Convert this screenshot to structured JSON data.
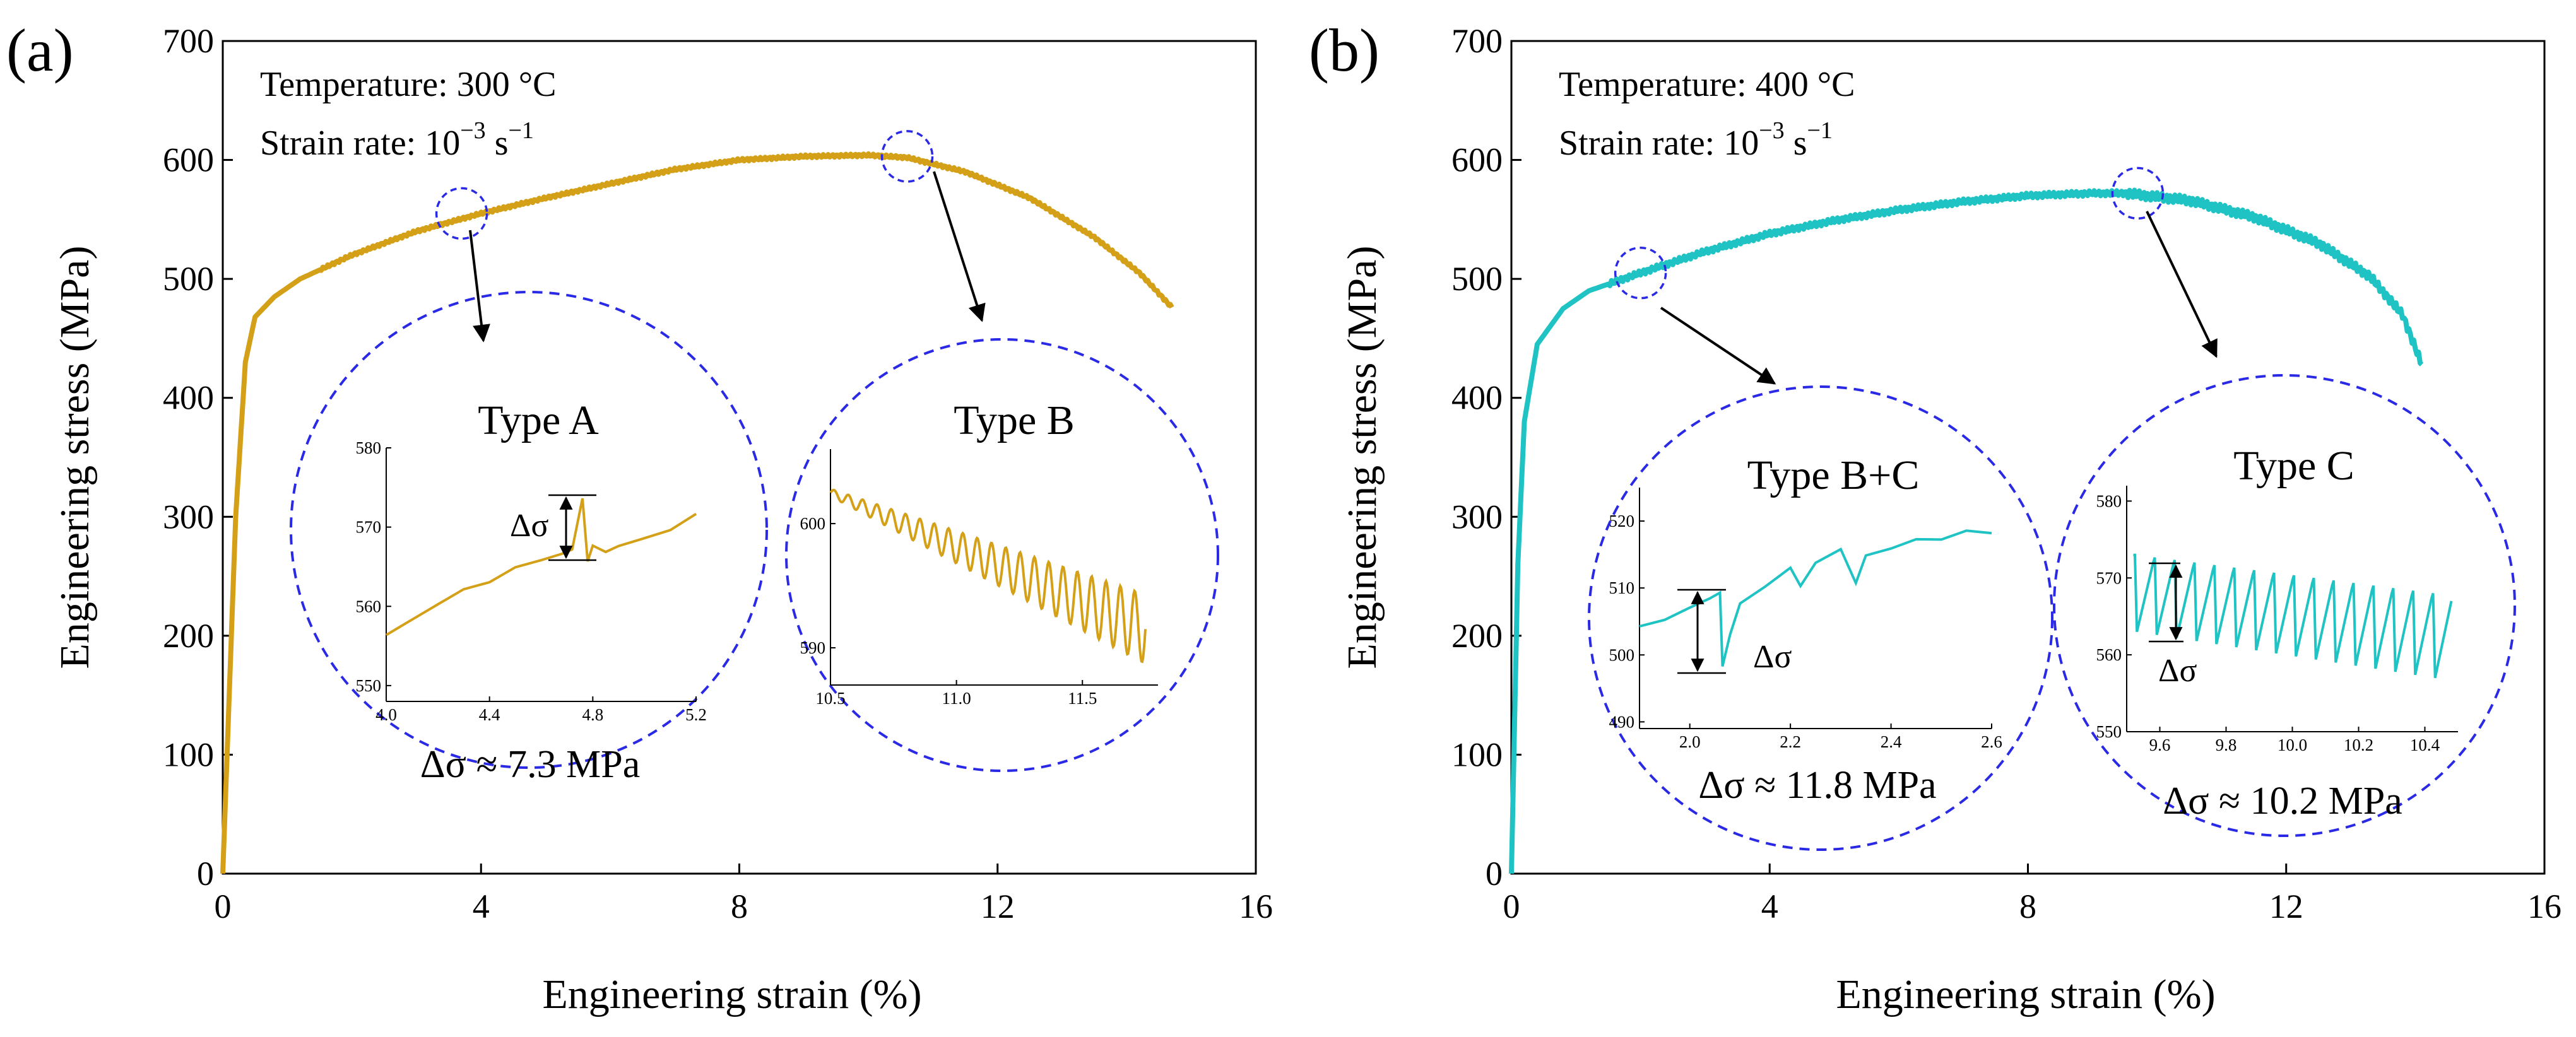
{
  "chart_data": [
    {
      "type": "line",
      "panel_label": "(a)",
      "xlabel": "Engineering strain (%)",
      "ylabel": "Engineering stress (MPa)",
      "xlim": [
        0,
        16
      ],
      "ylim": [
        0,
        700
      ],
      "x_ticks": [
        "0",
        "4",
        "8",
        "12",
        "16"
      ],
      "y_ticks": [
        "0",
        "100",
        "200",
        "300",
        "400",
        "500",
        "600",
        "700"
      ],
      "grid": false,
      "legend": "none",
      "color": "#d4a017",
      "annotations": {
        "temperature": "Temperature: 300 °C",
        "strain_rate_prefix": "Strain rate: 10",
        "strain_rate_exp": "−3",
        "strain_rate_unit": " s",
        "strain_rate_unit_exp": "−1"
      },
      "series": [
        {
          "name": "300 °C",
          "x": [
            0,
            0.2,
            0.35,
            0.5,
            0.8,
            1.2,
            1.6,
            2.0,
            3.0,
            4.0,
            5.0,
            6.0,
            7.0,
            8.0,
            9.0,
            10.0,
            10.6,
            11.5,
            12.5,
            13.5,
            14.2,
            14.7
          ],
          "y": [
            0,
            300,
            430,
            468,
            485,
            500,
            510,
            520,
            540,
            555,
            568,
            580,
            592,
            600,
            603,
            604,
            602,
            590,
            568,
            535,
            505,
            476
          ]
        }
      ],
      "zoom_markers": [
        {
          "x": 3.7,
          "y": 555
        },
        {
          "x": 10.6,
          "y": 603
        }
      ],
      "insets": [
        {
          "title": "Type A",
          "xlim": [
            4.0,
            5.2
          ],
          "ylim": [
            548,
            580
          ],
          "x_ticks": [
            "4.0",
            "4.4",
            "4.8",
            "5.2"
          ],
          "y_ticks": [
            "550",
            "560",
            "570",
            "580"
          ],
          "delta_label": "Δσ",
          "note": "Δσ ≈ 7.3 MPa",
          "series": {
            "x": [
              4.0,
              4.1,
              4.2,
              4.3,
              4.4,
              4.5,
              4.6,
              4.68,
              4.72,
              4.76,
              4.78,
              4.8,
              4.85,
              4.9,
              5.0,
              5.1,
              5.2
            ],
            "y": [
              556,
              558,
              560,
              562,
              563,
              565,
              566,
              567,
              567,
              573.5,
              566,
              568,
              566.5,
              568,
              569,
              570,
              572
            ]
          }
        },
        {
          "title": "Type B",
          "xlim": [
            10.5,
            11.8
          ],
          "ylim": [
            587,
            606
          ],
          "x_ticks": [
            "10.5",
            "11.0",
            "11.5"
          ],
          "y_ticks": [
            "590",
            "600"
          ],
          "series": {
            "x_start": 10.5,
            "x_end": 11.75,
            "y_start": 602.5,
            "y_end": 591.5,
            "osc_amp_end": 2.5
          }
        }
      ]
    },
    {
      "type": "line",
      "panel_label": "(b)",
      "xlabel": "Engineering strain (%)",
      "ylabel": "Engineering stress (MPa)",
      "xlim": [
        0,
        16
      ],
      "ylim": [
        0,
        700
      ],
      "x_ticks": [
        "0",
        "4",
        "8",
        "12",
        "16"
      ],
      "y_ticks": [
        "0",
        "100",
        "200",
        "300",
        "400",
        "500",
        "600",
        "700"
      ],
      "grid": false,
      "legend": "none",
      "color": "#1fc3c3",
      "annotations": {
        "temperature": "Temperature: 400 °C",
        "strain_rate_prefix": "Strain rate: 10",
        "strain_rate_exp": "−3",
        "strain_rate_unit": " s",
        "strain_rate_unit_exp": "−1"
      },
      "series": [
        {
          "name": "400 °C",
          "x": [
            0,
            0.1,
            0.2,
            0.4,
            0.8,
            1.2,
            2.0,
            3.0,
            4.0,
            5.0,
            6.0,
            7.0,
            8.0,
            9.0,
            9.5,
            10.5,
            11.5,
            12.5,
            13.3,
            13.8,
            14.1
          ],
          "y": [
            0,
            260,
            380,
            445,
            475,
            490,
            505,
            523,
            538,
            549,
            558,
            565,
            570,
            572,
            572,
            566,
            552,
            530,
            502,
            470,
            428
          ]
        }
      ],
      "zoom_markers": [
        {
          "x": 2.0,
          "y": 505
        },
        {
          "x": 9.7,
          "y": 572
        }
      ],
      "insets": [
        {
          "title": "Type B+C",
          "xlim": [
            1.9,
            2.6
          ],
          "ylim": [
            489,
            525
          ],
          "x_ticks": [
            "2.0",
            "2.2",
            "2.4",
            "2.6"
          ],
          "y_ticks": [
            "490",
            "500",
            "510",
            "520"
          ],
          "delta_label": "Δσ",
          "note": "Δσ ≈ 11.8 MPa",
          "series": {
            "x": [
              1.9,
              1.95,
              2.0,
              2.04,
              2.06,
              2.065,
              2.08,
              2.1,
              2.15,
              2.2,
              2.22,
              2.25,
              2.3,
              2.33,
              2.35,
              2.4,
              2.45,
              2.5,
              2.55,
              2.6
            ],
            "y": [
              504,
              505.5,
              507,
              508.5,
              509,
              498,
              503,
              508,
              510,
              513,
              510,
              514,
              515.5,
              511,
              515,
              516,
              517,
              517.5,
              518.5,
              518
            ]
          }
        },
        {
          "title": "Type C",
          "xlim": [
            9.5,
            10.5
          ],
          "ylim": [
            550,
            582
          ],
          "x_ticks": [
            "9.6",
            "9.8",
            "10.0",
            "10.2",
            "10.4"
          ],
          "y_ticks": [
            "550",
            "560",
            "570",
            "580"
          ],
          "delta_label": "Δσ",
          "note": "Δσ ≈ 10.2 MPa",
          "series": {
            "x_start": 9.52,
            "x_end": 10.48,
            "teeth": 16,
            "top_start": 573,
            "top_end": 568,
            "bottom_start": 563,
            "bottom_end": 557
          }
        }
      ]
    }
  ]
}
